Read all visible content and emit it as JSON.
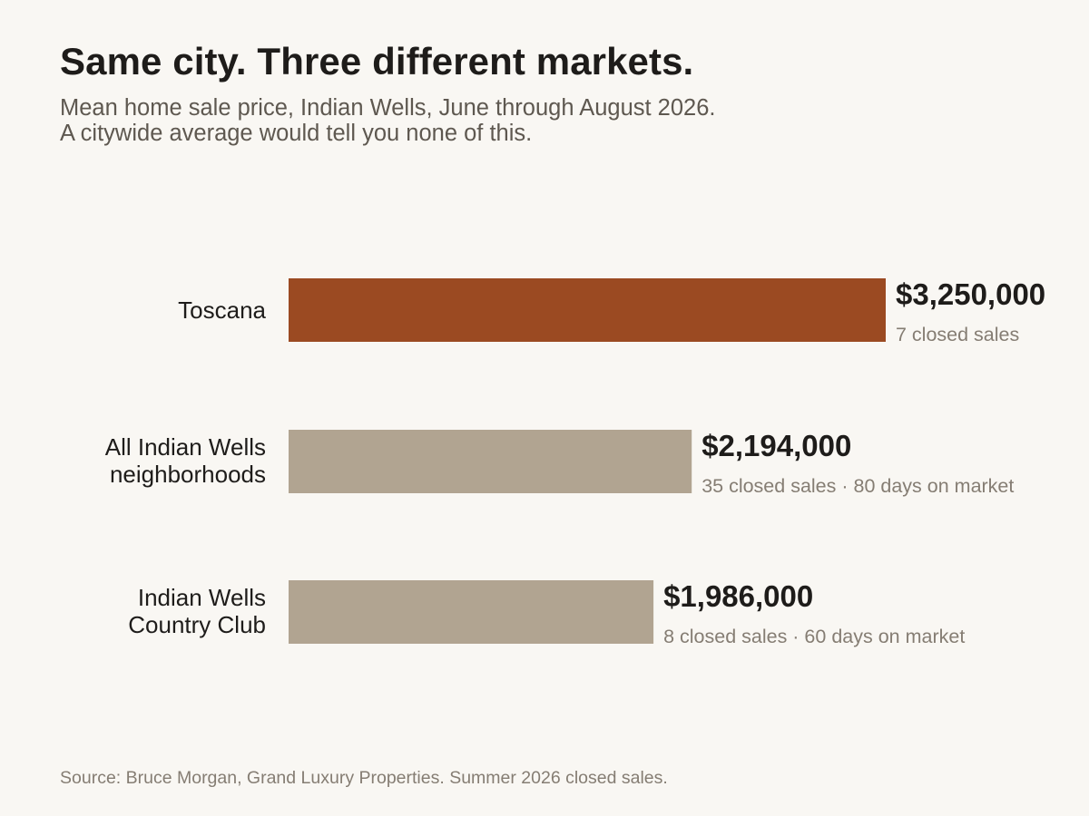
{
  "chart_data": {
    "type": "bar",
    "orientation": "horizontal",
    "title": "Same city. Three different markets.",
    "subtitle_lines": [
      "Mean home sale price, Indian Wells, June through August 2026.",
      "A citywide average would tell you none of this."
    ],
    "categories": [
      [
        "Toscana"
      ],
      [
        "All Indian Wells",
        "neighborhoods"
      ],
      [
        "Indian Wells",
        "Country Club"
      ]
    ],
    "values": [
      3250000,
      2194000,
      1986000
    ],
    "value_labels": [
      "$3,250,000",
      "$2,194,000",
      "$1,986,000"
    ],
    "detail_labels": [
      "7 closed sales",
      "35 closed sales · 80 days on market",
      "8 closed sales · 60 days on market"
    ],
    "bar_colors": [
      "#9b4a22",
      "#b1a491",
      "#b1a491"
    ],
    "xlim": [
      0,
      3250000
    ],
    "grid": false,
    "legend": "none",
    "source": "Source: Bruce Morgan, Grand Luxury Properties. Summer 2026 closed sales."
  }
}
